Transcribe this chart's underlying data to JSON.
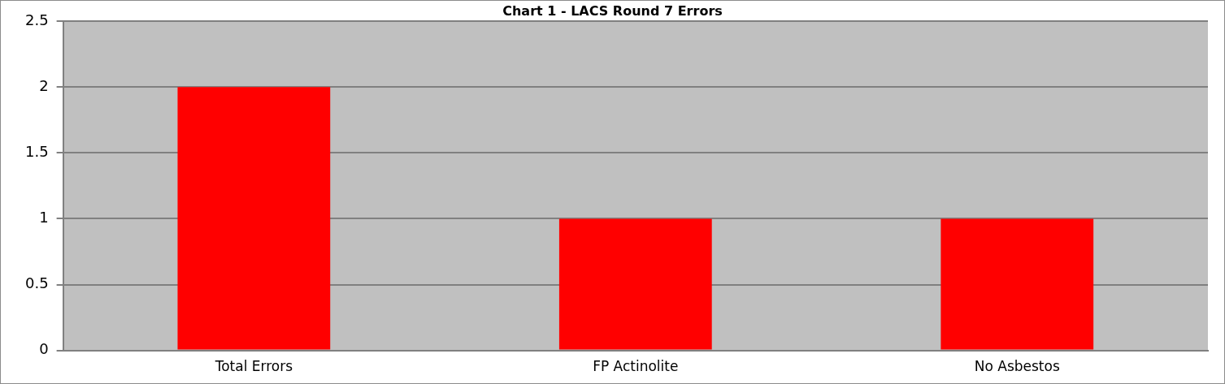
{
  "chart_data": {
    "type": "bar",
    "title": "Chart 1 - LACS Round 7 Errors",
    "categories": [
      "Total Errors",
      "FP Actinolite",
      "No Asbestos"
    ],
    "values": [
      2,
      1,
      1
    ],
    "color": "#ff0000",
    "ylim": [
      0,
      2.5
    ],
    "yticks": [
      0,
      0.5,
      1,
      1.5,
      2,
      2.5
    ],
    "grid": "y",
    "legend": false
  }
}
